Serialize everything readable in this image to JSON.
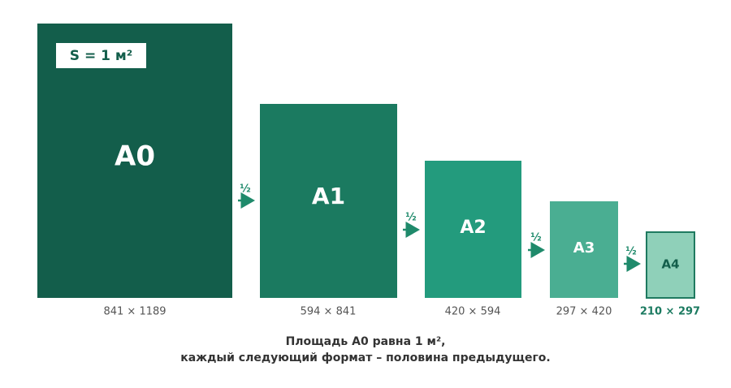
{
  "badge": "S = 1 м²",
  "sheets": [
    {
      "label": "A0",
      "size": "841 × 1189"
    },
    {
      "label": "A1",
      "size": "594 × 841"
    },
    {
      "label": "A2",
      "size": "420 × 594"
    },
    {
      "label": "A3",
      "size": "297 × 420"
    },
    {
      "label": "A4",
      "size": "210 × 297"
    }
  ],
  "arrows": [
    "½",
    "½",
    "½",
    "½"
  ],
  "caption": [
    "Площадь А0 равна 1 м²,",
    "каждый следующий формат – половина предыдущего."
  ]
}
